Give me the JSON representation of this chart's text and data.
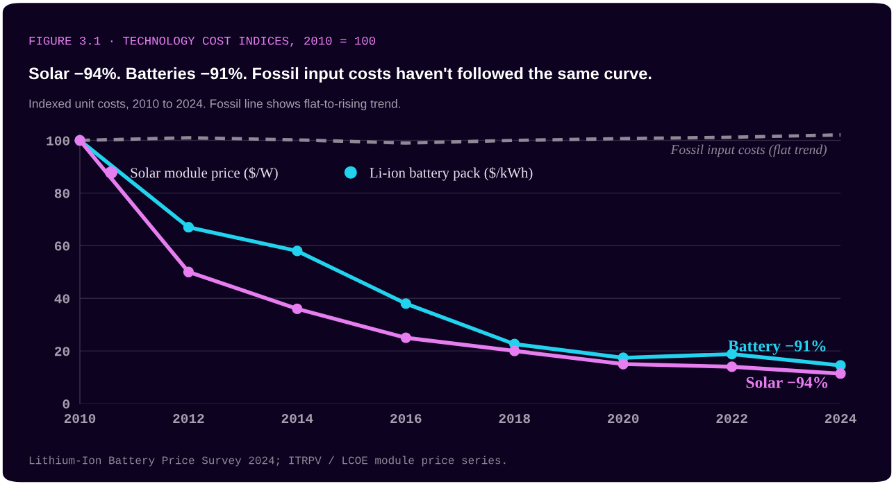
{
  "chart_data": {
    "type": "line",
    "title": "Solar −94%. Batteries −91%. Fossil input costs haven't followed the same curve.",
    "subtitle": "Indexed unit costs, 2010 to 2024. Fossil line shows flat-to-rising trend.",
    "annotations": [
      "FIGURE 3.1 · TECHNOLOGY COST INDICES, 2010 = 100",
      {
        "text": "Battery −91%",
        "x": 2024,
        "y": 14.5
      },
      {
        "text": "Solar −94%",
        "x": 2024,
        "y": 11.4
      },
      "Lithium-Ion Battery Price Survey 2024; ITRPV / LCOE module price series."
    ],
    "x": [
      2010,
      2012,
      2014,
      2016,
      2018,
      2020,
      2022,
      2024
    ],
    "series": [
      {
        "name": "Solar module price ($/W)",
        "color": "#e77ef0",
        "values": [
          100,
          50,
          36,
          25,
          20,
          15,
          14,
          11.4
        ]
      },
      {
        "name": "Li-ion battery pack ($/kWh)",
        "color": "#22d3ee",
        "values": [
          100,
          67,
          58,
          38,
          22.6,
          17.4,
          18.8,
          14.5
        ]
      },
      {
        "name": "Fossil input costs (flat trend)",
        "color": "#8f8896",
        "line_style": "dashed",
        "marker": "none",
        "values": [
          100,
          101,
          100.2,
          99,
          100,
          100.7,
          101.2,
          102.1
        ]
      }
    ],
    "xlim": [
      2010,
      2024
    ],
    "xticks": [
      2010,
      2012,
      2014,
      2016,
      2018,
      2020,
      2022,
      2024
    ],
    "ylim": [
      0,
      102.5
    ],
    "yticks": [
      0,
      20,
      40,
      60,
      80,
      100
    ],
    "grid": "y",
    "legend": "top left",
    "marker": "circle",
    "line_style": "solid"
  }
}
